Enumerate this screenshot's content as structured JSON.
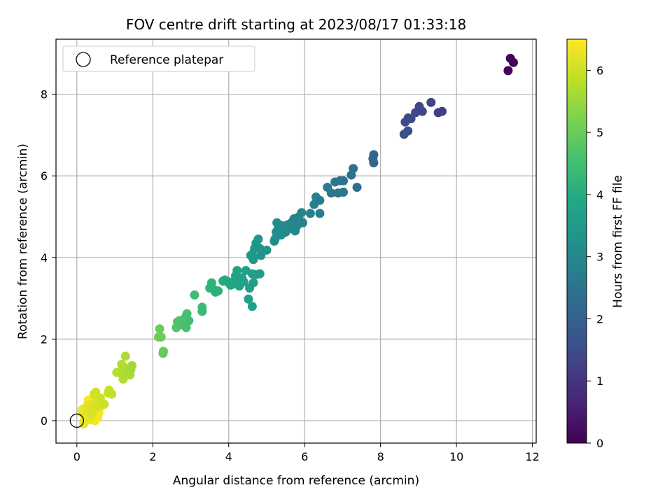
{
  "chart_data": {
    "type": "scatter",
    "title": "FOV centre drift starting at 2023/08/17 01:33:18",
    "xlabel": "Angular distance from reference (arcmin)",
    "ylabel": "Rotation from reference (arcmin)",
    "xlim": [
      -0.55,
      12.1
    ],
    "ylim": [
      -0.55,
      9.35
    ],
    "xticks": [
      0,
      2,
      4,
      6,
      8,
      10,
      12
    ],
    "yticks": [
      0,
      2,
      4,
      6,
      8
    ],
    "grid": true,
    "legend": {
      "placement": "top-left",
      "entries": [
        "Reference platepar"
      ]
    },
    "reference_point": {
      "x": 0,
      "y": 0,
      "marker": "open-circle"
    },
    "colorbar": {
      "label": "Hours from first FF file",
      "colormap": "viridis",
      "range": [
        0,
        6.5
      ],
      "ticks": [
        0,
        1,
        2,
        3,
        4,
        5,
        6
      ]
    },
    "series": [
      {
        "columns": [
          "x",
          "y",
          "hours"
        ],
        "points": [
          [
            11.42,
            8.88,
            0.05
          ],
          [
            11.5,
            8.78,
            0.05
          ],
          [
            11.36,
            8.58,
            0.08
          ],
          [
            9.62,
            7.58,
            1.2
          ],
          [
            9.52,
            7.55,
            1.22
          ],
          [
            9.33,
            7.8,
            1.3
          ],
          [
            9.1,
            7.58,
            1.35
          ],
          [
            9.02,
            7.7,
            1.38
          ],
          [
            8.92,
            7.55,
            1.4
          ],
          [
            8.8,
            7.4,
            1.45
          ],
          [
            8.73,
            7.42,
            1.48
          ],
          [
            8.65,
            7.32,
            1.5
          ],
          [
            8.62,
            7.02,
            1.55
          ],
          [
            8.72,
            7.1,
            1.55
          ],
          [
            7.82,
            6.52,
            2.1
          ],
          [
            7.8,
            6.42,
            2.12
          ],
          [
            7.82,
            6.32,
            2.15
          ],
          [
            7.38,
            5.72,
            2.4
          ],
          [
            7.28,
            6.18,
            2.42
          ],
          [
            7.23,
            6.02,
            2.45
          ],
          [
            7.02,
            5.88,
            2.5
          ],
          [
            6.93,
            5.88,
            2.55
          ],
          [
            6.8,
            5.85,
            2.6
          ],
          [
            6.88,
            5.58,
            2.58
          ],
          [
            7.02,
            5.6,
            2.58
          ],
          [
            6.7,
            5.58,
            2.62
          ],
          [
            6.6,
            5.72,
            2.65
          ],
          [
            6.4,
            5.4,
            2.75
          ],
          [
            6.3,
            5.48,
            2.78
          ],
          [
            6.25,
            5.3,
            2.8
          ],
          [
            6.4,
            5.08,
            2.82
          ],
          [
            6.15,
            5.08,
            2.85
          ],
          [
            5.92,
            5.1,
            2.9
          ],
          [
            5.95,
            4.85,
            2.92
          ],
          [
            5.85,
            5.0,
            2.95
          ],
          [
            5.8,
            4.78,
            2.98
          ],
          [
            5.72,
            4.95,
            3.0
          ],
          [
            5.65,
            4.85,
            3.02
          ],
          [
            5.62,
            4.72,
            3.05
          ],
          [
            5.55,
            4.8,
            3.05
          ],
          [
            5.45,
            4.72,
            3.08
          ],
          [
            5.5,
            4.62,
            3.1
          ],
          [
            5.4,
            4.78,
            3.1
          ],
          [
            5.38,
            4.55,
            3.12
          ],
          [
            5.3,
            4.7,
            3.12
          ],
          [
            5.27,
            4.85,
            3.15
          ],
          [
            5.25,
            4.62,
            3.15
          ],
          [
            5.22,
            4.45,
            3.18
          ],
          [
            5.2,
            4.4,
            3.18
          ],
          [
            5.75,
            4.65,
            3.03
          ],
          [
            5.68,
            4.7,
            3.04
          ],
          [
            5.0,
            4.18,
            3.3
          ],
          [
            4.85,
            4.05,
            3.35
          ],
          [
            4.82,
            4.22,
            3.38
          ],
          [
            4.78,
            4.45,
            3.4
          ],
          [
            4.72,
            4.35,
            3.42
          ],
          [
            4.68,
            4.22,
            3.45
          ],
          [
            4.65,
            3.95,
            3.48
          ],
          [
            4.62,
            4.08,
            3.5
          ],
          [
            4.58,
            4.05,
            3.5
          ],
          [
            4.82,
            3.6,
            3.55
          ],
          [
            4.72,
            3.58,
            3.58
          ],
          [
            4.62,
            3.6,
            3.6
          ],
          [
            4.65,
            3.38,
            3.62
          ],
          [
            4.55,
            3.25,
            3.65
          ],
          [
            4.62,
            2.8,
            3.68
          ],
          [
            4.52,
            2.98,
            3.7
          ],
          [
            4.45,
            3.68,
            3.72
          ],
          [
            4.35,
            3.5,
            3.75
          ],
          [
            4.3,
            3.42,
            3.78
          ],
          [
            4.22,
            3.68,
            3.8
          ],
          [
            4.18,
            3.55,
            3.82
          ],
          [
            4.15,
            3.35,
            3.85
          ],
          [
            4.1,
            3.4,
            3.88
          ],
          [
            4.05,
            3.32,
            3.9
          ],
          [
            4.0,
            3.38,
            3.92
          ],
          [
            3.95,
            3.42,
            3.95
          ],
          [
            3.9,
            3.45,
            3.98
          ],
          [
            3.85,
            3.42,
            4.0
          ],
          [
            4.4,
            3.4,
            3.76
          ],
          [
            4.28,
            3.3,
            3.79
          ],
          [
            3.72,
            3.18,
            4.1
          ],
          [
            3.65,
            3.15,
            4.12
          ],
          [
            3.6,
            3.22,
            4.15
          ],
          [
            3.55,
            3.38,
            4.18
          ],
          [
            3.5,
            3.25,
            4.2
          ],
          [
            3.3,
            2.78,
            4.35
          ],
          [
            3.3,
            2.68,
            4.38
          ],
          [
            3.1,
            3.08,
            4.45
          ],
          [
            2.95,
            2.45,
            4.55
          ],
          [
            2.9,
            2.62,
            4.58
          ],
          [
            2.88,
            2.28,
            4.6
          ],
          [
            2.85,
            2.52,
            4.62
          ],
          [
            2.78,
            2.42,
            4.65
          ],
          [
            2.72,
            2.35,
            4.68
          ],
          [
            2.7,
            2.45,
            4.7
          ],
          [
            2.65,
            2.42,
            4.72
          ],
          [
            2.62,
            2.28,
            4.74
          ],
          [
            2.82,
            2.35,
            4.63
          ],
          [
            2.28,
            1.7,
            4.95
          ],
          [
            2.27,
            1.65,
            4.96
          ],
          [
            2.22,
            2.05,
            5.0
          ],
          [
            2.18,
            2.25,
            5.02
          ],
          [
            2.15,
            2.05,
            5.05
          ],
          [
            1.45,
            1.35,
            5.6
          ],
          [
            1.42,
            1.25,
            5.62
          ],
          [
            1.4,
            1.12,
            5.65
          ],
          [
            1.32,
            1.18,
            5.68
          ],
          [
            1.28,
            1.58,
            5.7
          ],
          [
            1.25,
            1.3,
            5.7
          ],
          [
            1.25,
            1.12,
            5.72
          ],
          [
            1.22,
            1.02,
            5.74
          ],
          [
            1.2,
            1.25,
            5.75
          ],
          [
            1.18,
            1.38,
            5.76
          ],
          [
            1.1,
            1.18,
            5.78
          ],
          [
            1.05,
            1.18,
            5.8
          ],
          [
            0.92,
            0.65,
            5.9
          ],
          [
            0.85,
            0.75,
            5.92
          ],
          [
            0.82,
            0.68,
            5.93
          ],
          [
            0.72,
            0.4,
            5.98
          ],
          [
            0.62,
            0.55,
            6.0
          ],
          [
            0.55,
            0.35,
            6.05
          ],
          [
            0.52,
            0.58,
            6.07
          ],
          [
            0.5,
            0.7,
            6.08
          ],
          [
            0.45,
            0.65,
            6.1
          ],
          [
            0.45,
            0.28,
            6.12
          ],
          [
            0.42,
            0.4,
            6.14
          ],
          [
            0.4,
            0.22,
            6.16
          ],
          [
            0.38,
            0.12,
            6.18
          ],
          [
            0.35,
            0.35,
            6.2
          ],
          [
            0.32,
            0.25,
            6.22
          ],
          [
            0.3,
            0.18,
            6.24
          ],
          [
            0.28,
            0.38,
            6.25
          ],
          [
            0.25,
            0.3,
            6.27
          ],
          [
            0.22,
            0.1,
            6.28
          ],
          [
            0.2,
            0.25,
            6.3
          ],
          [
            0.18,
            -0.02,
            6.32
          ],
          [
            0.15,
            0.28,
            6.33
          ],
          [
            0.12,
            0.2,
            6.34
          ],
          [
            0.18,
            -0.08,
            6.35
          ],
          [
            0.25,
            0.05,
            6.36
          ],
          [
            0.35,
            0.02,
            6.37
          ],
          [
            0.42,
            0.1,
            6.38
          ],
          [
            0.48,
            0.0,
            6.39
          ],
          [
            0.52,
            0.15,
            6.4
          ],
          [
            0.55,
            0.08,
            6.41
          ],
          [
            0.58,
            0.2,
            6.42
          ],
          [
            0.6,
            0.32,
            6.43
          ],
          [
            0.4,
            0.45,
            6.44
          ],
          [
            0.3,
            0.5,
            6.45
          ]
        ]
      }
    ]
  }
}
